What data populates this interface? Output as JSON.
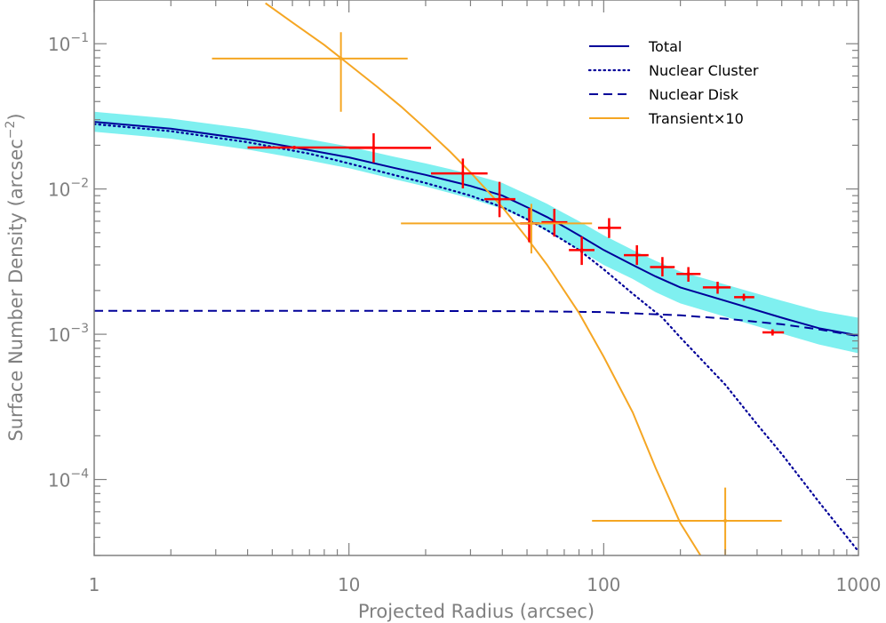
{
  "chart_data": {
    "type": "line",
    "x_scale": "log",
    "y_scale": "log",
    "xlim": [
      1,
      1000
    ],
    "ylim": [
      3e-05,
      0.2
    ],
    "xlabel": "Projected Radius (arcsec)",
    "ylabel_main": "Surface Number Density (arcsec",
    "ylabel_sup": "−2",
    "ylabel_close": ")",
    "x_ticks": [
      {
        "value": 1,
        "label": "1"
      },
      {
        "value": 10,
        "label": "10"
      },
      {
        "value": 100,
        "label": "100"
      },
      {
        "value": 1000,
        "label": "1000"
      }
    ],
    "y_ticks": [
      {
        "value": 0.1,
        "base": "10",
        "exp": "−1"
      },
      {
        "value": 0.01,
        "base": "10",
        "exp": "−2"
      },
      {
        "value": 0.001,
        "base": "10",
        "exp": "−3"
      },
      {
        "value": 0.0001,
        "base": "10",
        "exp": "−4"
      }
    ],
    "legend": {
      "placement": "top-right",
      "entries": [
        {
          "label": "Total",
          "style": "solid",
          "color": "#000099"
        },
        {
          "label": "Nuclear Cluster",
          "style": "dotted",
          "color": "#000099"
        },
        {
          "label": "Nuclear Disk",
          "style": "dashed",
          "color": "#000099"
        },
        {
          "label": "Transient×10",
          "style": "solid",
          "color": "#f5a623"
        }
      ]
    },
    "colors": {
      "model": "#000099",
      "band": "#7ff0f0",
      "data_points": "#ff0000",
      "transient": "#f5a623",
      "axes": "#808080"
    },
    "series": [
      {
        "name": "Total",
        "style": "solid",
        "x": [
          1,
          2,
          4,
          7,
          10,
          15,
          20,
          30,
          40,
          50,
          60,
          70,
          80,
          100,
          130,
          160,
          200,
          300,
          500,
          700,
          1000
        ],
        "y": [
          0.029,
          0.026,
          0.022,
          0.0185,
          0.0165,
          0.014,
          0.0125,
          0.0105,
          0.009,
          0.0075,
          0.0064,
          0.0055,
          0.0048,
          0.0038,
          0.003,
          0.0025,
          0.0021,
          0.0017,
          0.0013,
          0.0011,
          0.00098
        ]
      },
      {
        "name": "Nuclear Cluster",
        "style": "dotted",
        "x": [
          1,
          2,
          4,
          7,
          10,
          15,
          20,
          30,
          40,
          50,
          60,
          80,
          100,
          130,
          170,
          200,
          300,
          400,
          500,
          700,
          1000
        ],
        "y": [
          0.028,
          0.025,
          0.021,
          0.0175,
          0.015,
          0.0125,
          0.011,
          0.009,
          0.0075,
          0.0062,
          0.0052,
          0.0038,
          0.0028,
          0.0019,
          0.0013,
          0.00095,
          0.00045,
          0.00024,
          0.00015,
          7e-05,
          3.2e-05
        ]
      },
      {
        "name": "Nuclear Disk",
        "style": "dashed",
        "x": [
          1,
          10,
          50,
          100,
          200,
          300,
          500,
          700,
          1000
        ],
        "y": [
          0.00145,
          0.00145,
          0.00144,
          0.00142,
          0.00135,
          0.00128,
          0.00117,
          0.00108,
          0.00097
        ]
      },
      {
        "name": "Transient×10",
        "style": "solid",
        "x": [
          4.7,
          6,
          8,
          10,
          13,
          16,
          20,
          25,
          30,
          40,
          50,
          60,
          80,
          100,
          130,
          160,
          200,
          240
        ],
        "y": [
          0.19,
          0.14,
          0.098,
          0.072,
          0.05,
          0.037,
          0.026,
          0.018,
          0.013,
          0.0075,
          0.0046,
          0.003,
          0.0014,
          0.0007,
          0.00029,
          0.00012,
          5e-05,
          3e-05
        ]
      }
    ],
    "band": {
      "x": [
        1,
        2,
        4,
        7,
        10,
        15,
        20,
        30,
        40,
        50,
        60,
        70,
        80,
        100,
        130,
        160,
        200,
        300,
        500,
        700,
        1000
      ],
      "y_upper": [
        0.034,
        0.0305,
        0.026,
        0.022,
        0.0196,
        0.0167,
        0.015,
        0.0127,
        0.011,
        0.0092,
        0.0079,
        0.0068,
        0.006,
        0.0048,
        0.0038,
        0.0032,
        0.0027,
        0.0022,
        0.0017,
        0.00145,
        0.0013
      ],
      "y_lower": [
        0.0248,
        0.0222,
        0.0187,
        0.0157,
        0.0139,
        0.0117,
        0.0104,
        0.0086,
        0.0073,
        0.0061,
        0.0051,
        0.0044,
        0.0038,
        0.003,
        0.0024,
        0.00195,
        0.00163,
        0.00132,
        0.00101,
        0.00085,
        0.00074
      ]
    },
    "data_points": [
      {
        "x": 6.1,
        "y": 0.0193,
        "xlo": 4,
        "xhi": 12.5,
        "ylo": 0.0193,
        "yhi": 0.0193
      },
      {
        "x": 12.5,
        "y": 0.0192,
        "xlo": 10,
        "xhi": 21,
        "ylo": 0.0152,
        "yhi": 0.0242
      },
      {
        "x": 28,
        "y": 0.0128,
        "xlo": 21,
        "xhi": 35,
        "ylo": 0.0101,
        "yhi": 0.0162
      },
      {
        "x": 39,
        "y": 0.0085,
        "xlo": 34,
        "xhi": 45,
        "ylo": 0.0064,
        "yhi": 0.0112
      },
      {
        "x": 51,
        "y": 0.0058,
        "xlo": 47,
        "xhi": 56,
        "ylo": 0.0043,
        "yhi": 0.0074
      },
      {
        "x": 64,
        "y": 0.0059,
        "xlo": 57,
        "xhi": 72,
        "ylo": 0.0047,
        "yhi": 0.0073
      },
      {
        "x": 82,
        "y": 0.0038,
        "xlo": 73,
        "xhi": 92,
        "ylo": 0.003,
        "yhi": 0.0047
      },
      {
        "x": 105,
        "y": 0.0054,
        "xlo": 95,
        "xhi": 117,
        "ylo": 0.0046,
        "yhi": 0.0063
      },
      {
        "x": 135,
        "y": 0.0035,
        "xlo": 120,
        "xhi": 150,
        "ylo": 0.003,
        "yhi": 0.0041
      },
      {
        "x": 170,
        "y": 0.0029,
        "xlo": 152,
        "xhi": 190,
        "ylo": 0.0025,
        "yhi": 0.0034
      },
      {
        "x": 215,
        "y": 0.0026,
        "xlo": 193,
        "xhi": 240,
        "ylo": 0.0023,
        "yhi": 0.0029
      },
      {
        "x": 280,
        "y": 0.0021,
        "xlo": 245,
        "xhi": 315,
        "ylo": 0.0019,
        "yhi": 0.0023
      },
      {
        "x": 355,
        "y": 0.0018,
        "xlo": 325,
        "xhi": 390,
        "ylo": 0.0017,
        "yhi": 0.0019
      },
      {
        "x": 460,
        "y": 0.00103,
        "xlo": 420,
        "xhi": 510,
        "ylo": 0.00098,
        "yhi": 0.00108
      }
    ],
    "transient_points": [
      {
        "x": 9.3,
        "y": 0.079,
        "xlo": 2.9,
        "xhi": 17,
        "ylo": 0.034,
        "yhi": 0.12
      },
      {
        "x": 52,
        "y": 0.0058,
        "xlo": 16,
        "xhi": 90,
        "ylo": 0.0036,
        "yhi": 0.0079
      },
      {
        "x": 300,
        "y": 5.2e-05,
        "xlo": 90,
        "xhi": 500,
        "ylo": 3e-05,
        "yhi": 8.8e-05
      }
    ]
  }
}
